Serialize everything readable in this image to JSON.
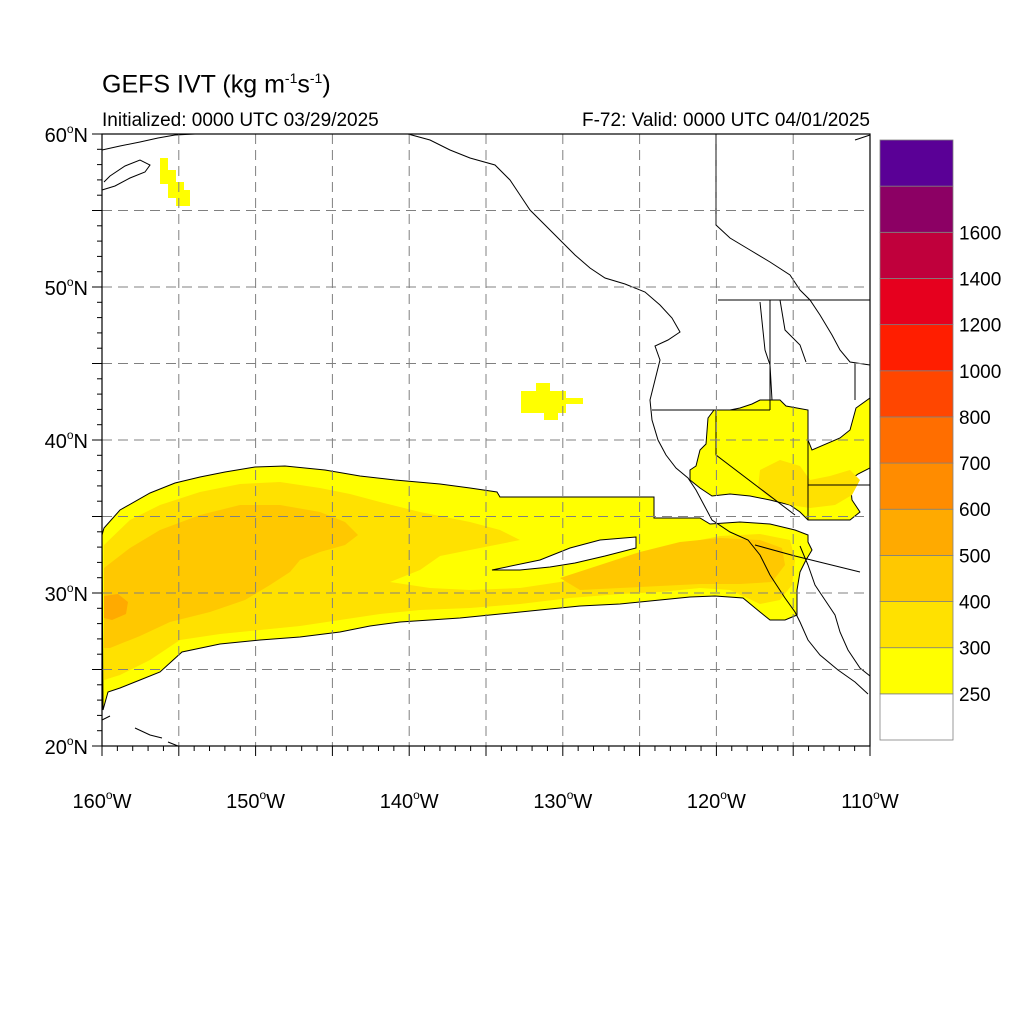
{
  "title": {
    "prefix": "GEFS IVT (kg m",
    "exp1": "-1",
    "mid": "s",
    "exp2": "-1",
    "suffix": ")"
  },
  "init_text": "Initialized: 0000 UTC 03/29/2025",
  "valid_text": "F-72: Valid: 0000 UTC 04/01/2025",
  "map": {
    "lon_range": [
      -160,
      -110
    ],
    "lat_range": [
      20,
      60
    ],
    "lat_labels": [
      {
        "lat": 60,
        "deg": "60",
        "hemi": "N"
      },
      {
        "lat": 50,
        "deg": "50",
        "hemi": "N"
      },
      {
        "lat": 40,
        "deg": "40",
        "hemi": "N"
      },
      {
        "lat": 30,
        "deg": "30",
        "hemi": "N"
      },
      {
        "lat": 20,
        "deg": "20",
        "hemi": "N"
      }
    ],
    "lon_labels": [
      {
        "lon": -160,
        "deg": "160",
        "hemi": "W"
      },
      {
        "lon": -150,
        "deg": "150",
        "hemi": "W"
      },
      {
        "lon": -140,
        "deg": "140",
        "hemi": "W"
      },
      {
        "lon": -130,
        "deg": "130",
        "hemi": "W"
      },
      {
        "lon": -120,
        "deg": "120",
        "hemi": "W"
      },
      {
        "lon": -110,
        "deg": "110",
        "hemi": "W"
      }
    ],
    "grid_lons": [
      -155,
      -150,
      -145,
      -140,
      -135,
      -130,
      -125,
      -120,
      -115
    ],
    "grid_lats": [
      25,
      30,
      35,
      40,
      45,
      50,
      55
    ]
  },
  "colorbar": {
    "labels": [
      "250",
      "300",
      "400",
      "500",
      "600",
      "700",
      "800",
      "1000",
      "1200",
      "1400",
      "1600"
    ],
    "colors": [
      "#ffffff",
      "#ffff00",
      "#ffe100",
      "#ffc800",
      "#ffaa00",
      "#ff8c00",
      "#ff6e00",
      "#ff4600",
      "#ff1e00",
      "#e6001e",
      "#c0003c",
      "#8c0064",
      "#5a0096"
    ]
  }
}
